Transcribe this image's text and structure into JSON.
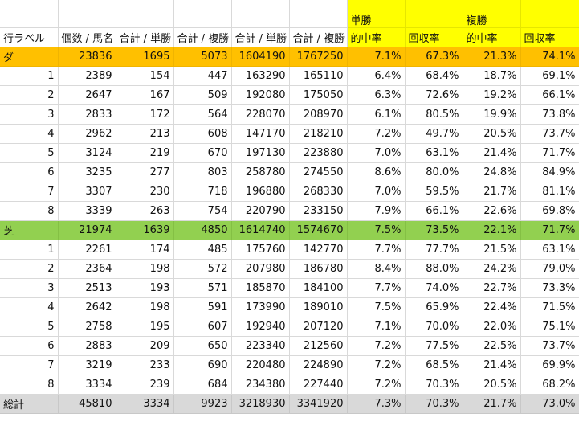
{
  "header": {
    "top": [
      "",
      "",
      "",
      "",
      "",
      "",
      "単勝",
      "",
      "複勝",
      ""
    ],
    "columns": [
      "行ラベル",
      "個数 / 馬名",
      "合計 / 単勝",
      "合計 / 複勝",
      "合計 / 単勝",
      "合計 / 複勝",
      "的中率",
      "回収率",
      "的中率",
      "回収率"
    ]
  },
  "groups": [
    {
      "label": "ダ",
      "values": [
        "23836",
        "1695",
        "5073",
        "1604190",
        "1767250",
        "7.1%",
        "67.3%",
        "21.3%",
        "74.1%"
      ],
      "rows": [
        {
          "label": "1",
          "values": [
            "2389",
            "154",
            "447",
            "163290",
            "165110",
            "6.4%",
            "68.4%",
            "18.7%",
            "69.1%"
          ]
        },
        {
          "label": "2",
          "values": [
            "2647",
            "167",
            "509",
            "192080",
            "175050",
            "6.3%",
            "72.6%",
            "19.2%",
            "66.1%"
          ]
        },
        {
          "label": "3",
          "values": [
            "2833",
            "172",
            "564",
            "228070",
            "208970",
            "6.1%",
            "80.5%",
            "19.9%",
            "73.8%"
          ]
        },
        {
          "label": "4",
          "values": [
            "2962",
            "213",
            "608",
            "147170",
            "218210",
            "7.2%",
            "49.7%",
            "20.5%",
            "73.7%"
          ]
        },
        {
          "label": "5",
          "values": [
            "3124",
            "219",
            "670",
            "197130",
            "223880",
            "7.0%",
            "63.1%",
            "21.4%",
            "71.7%"
          ]
        },
        {
          "label": "6",
          "values": [
            "3235",
            "277",
            "803",
            "258780",
            "274550",
            "8.6%",
            "80.0%",
            "24.8%",
            "84.9%"
          ]
        },
        {
          "label": "7",
          "values": [
            "3307",
            "230",
            "718",
            "196880",
            "268330",
            "7.0%",
            "59.5%",
            "21.7%",
            "81.1%"
          ]
        },
        {
          "label": "8",
          "values": [
            "3339",
            "263",
            "754",
            "220790",
            "233150",
            "7.9%",
            "66.1%",
            "22.6%",
            "69.8%"
          ]
        }
      ]
    },
    {
      "label": "芝",
      "values": [
        "21974",
        "1639",
        "4850",
        "1614740",
        "1574670",
        "7.5%",
        "73.5%",
        "22.1%",
        "71.7%"
      ],
      "rows": [
        {
          "label": "1",
          "values": [
            "2261",
            "174",
            "485",
            "175760",
            "142770",
            "7.7%",
            "77.7%",
            "21.5%",
            "63.1%"
          ]
        },
        {
          "label": "2",
          "values": [
            "2364",
            "198",
            "572",
            "207980",
            "186780",
            "8.4%",
            "88.0%",
            "24.2%",
            "79.0%"
          ]
        },
        {
          "label": "3",
          "values": [
            "2513",
            "193",
            "571",
            "185870",
            "184100",
            "7.7%",
            "74.0%",
            "22.7%",
            "73.3%"
          ]
        },
        {
          "label": "4",
          "values": [
            "2642",
            "198",
            "591",
            "173990",
            "189010",
            "7.5%",
            "65.9%",
            "22.4%",
            "71.5%"
          ]
        },
        {
          "label": "5",
          "values": [
            "2758",
            "195",
            "607",
            "192940",
            "207120",
            "7.1%",
            "70.0%",
            "22.0%",
            "75.1%"
          ]
        },
        {
          "label": "6",
          "values": [
            "2883",
            "209",
            "650",
            "223340",
            "212560",
            "7.2%",
            "77.5%",
            "22.5%",
            "73.7%"
          ]
        },
        {
          "label": "7",
          "values": [
            "3219",
            "233",
            "690",
            "220480",
            "224890",
            "7.2%",
            "68.5%",
            "21.4%",
            "69.9%"
          ]
        },
        {
          "label": "8",
          "values": [
            "3334",
            "239",
            "684",
            "234380",
            "227440",
            "7.2%",
            "70.3%",
            "20.5%",
            "68.2%"
          ]
        }
      ]
    }
  ],
  "total": {
    "label": "総計",
    "values": [
      "45810",
      "3334",
      "9923",
      "3218930",
      "3341920",
      "7.3%",
      "70.3%",
      "21.7%",
      "73.0%"
    ]
  }
}
